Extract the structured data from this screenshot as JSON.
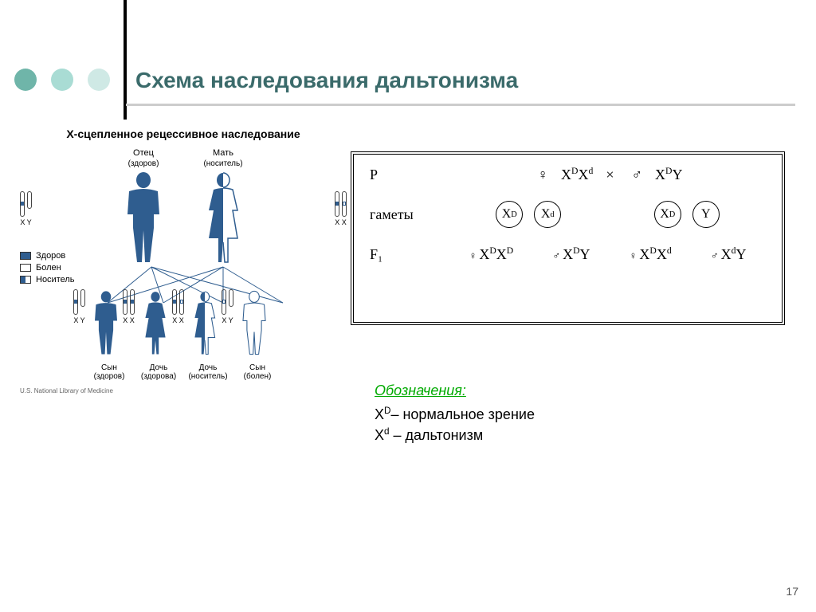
{
  "colors": {
    "dot1": "#6fb5a9",
    "dot2": "#a9dcd4",
    "dot3": "#cfe9e5",
    "title": "#3b6b6b",
    "healthy": "#2f5d8f",
    "affected": "#ffffff",
    "carrier_top": "#2f5d8f",
    "carrier_border": "#2f5d8f",
    "chrom_band_healthy": "#2f5d8f",
    "chrom_band_affected": "#ffffff"
  },
  "title": "Схема наследования дальтонизма",
  "pedigree": {
    "heading": "X-сцепленное рецессивное наследование",
    "father": {
      "label": "Отец",
      "sub": "(здоров)",
      "chrom_label": "X Y"
    },
    "mother": {
      "label": "Мать",
      "sub": "(носитель)",
      "chrom_label": "X X"
    },
    "legend": {
      "healthy": "Здоров",
      "affected": "Болен",
      "carrier": "Носитель"
    },
    "children": [
      {
        "label": "Сын",
        "sub": "(здоров)",
        "chrom_label": "X Y",
        "type": "boy",
        "status": "healthy"
      },
      {
        "label": "Дочь",
        "sub": "(здорова)",
        "chrom_label": "X X",
        "type": "girl",
        "status": "healthy"
      },
      {
        "label": "Дочь",
        "sub": "(носитель)",
        "chrom_label": "X X",
        "type": "girl",
        "status": "carrier"
      },
      {
        "label": "Сын",
        "sub": "(болен)",
        "chrom_label": "X Y",
        "type": "boy",
        "status": "affected"
      }
    ],
    "credit": "U.S. National Library of Medicine"
  },
  "cross": {
    "P_label": "P",
    "P_female": [
      "X",
      "D",
      "X",
      "d"
    ],
    "P_male": [
      "X",
      "D",
      "Y",
      ""
    ],
    "gametes_label": "гаметы",
    "gametes_female": [
      [
        "X",
        "D"
      ],
      [
        "X",
        "d"
      ]
    ],
    "gametes_male": [
      [
        "X",
        "D"
      ],
      [
        "Y",
        ""
      ]
    ],
    "F1_label": "F₁",
    "F1": [
      {
        "sex": "♀",
        "geno": [
          "X",
          "D",
          "X",
          "D"
        ]
      },
      {
        "sex": "♂",
        "geno": [
          "X",
          "D",
          "Y",
          ""
        ]
      },
      {
        "sex": "♀",
        "geno": [
          "X",
          "D",
          "X",
          "d"
        ]
      },
      {
        "sex": "♂",
        "geno": [
          "X",
          "d",
          "Y",
          ""
        ]
      }
    ],
    "symbols": {
      "female": "♀",
      "male": "♂",
      "cross": "×"
    }
  },
  "notes": {
    "heading": "Обозначения:",
    "line1_pre": "X",
    "line1_sup": "D",
    "line1_post": "– нормальное зрение",
    "line2_pre": "X",
    "line2_sup": "d",
    "line2_post": " – дальтонизм"
  },
  "page_number": "17"
}
